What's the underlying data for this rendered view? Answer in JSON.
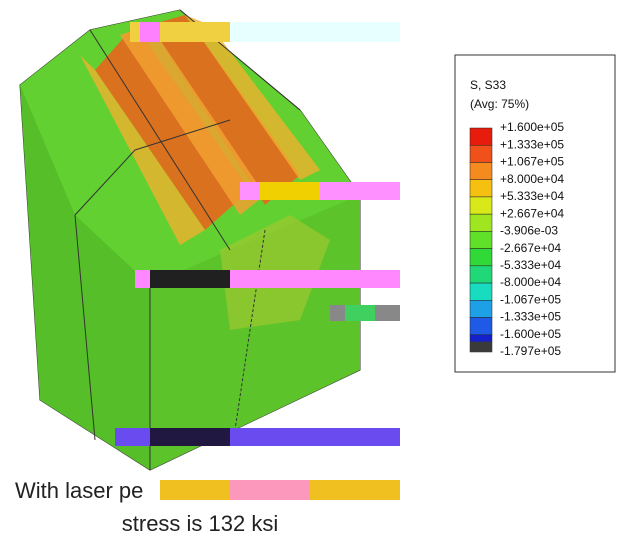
{
  "legend": {
    "title": "S, S33",
    "subtitle": "(Avg: 75%)",
    "labels": [
      "+1.600e+05",
      "+1.333e+05",
      "+1.067e+05",
      "+8.000e+04",
      "+5.333e+04",
      "+2.667e+04",
      "-3.906e-03",
      "-2.667e+04",
      "-5.333e+04",
      "-8.000e+04",
      "-1.067e+05",
      "-1.333e+05",
      "-1.600e+05",
      "-1.797e+05"
    ]
  },
  "caption": {
    "line1": "With laser pe",
    "line2": "stress is 132 ksi"
  }
}
